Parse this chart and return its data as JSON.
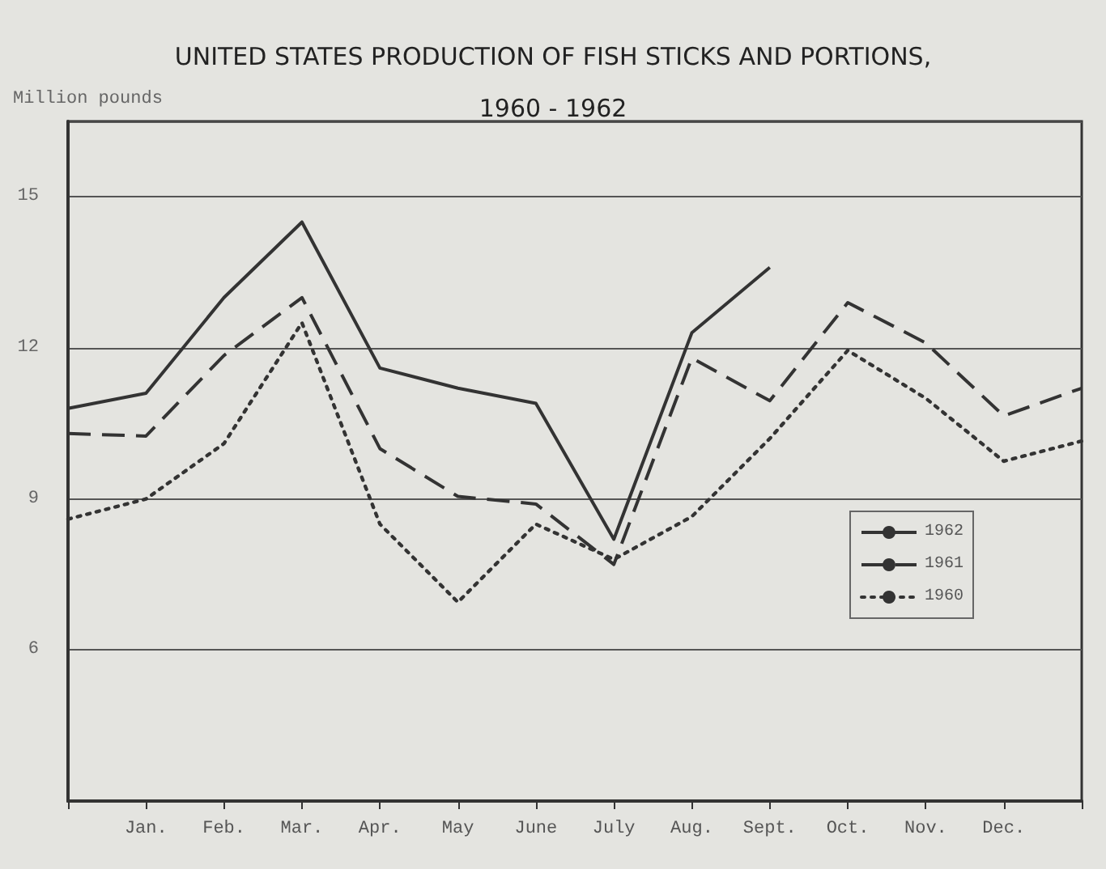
{
  "chart_data": {
    "type": "line",
    "title": "UNITED STATES PRODUCTION OF FISH STICKS AND PORTIONS,\n1960 - 1962",
    "ylabel": "Million pounds",
    "categories": [
      null,
      "Jan.",
      "Feb.",
      "Mar.",
      "Apr.",
      "May",
      "June",
      "July",
      "Aug.",
      "Sept.",
      "Oct.",
      "Nov.",
      "Dec.",
      null
    ],
    "ylim": [
      3,
      16.5
    ],
    "yticks": [
      6,
      9,
      12,
      15
    ],
    "series": [
      {
        "name": "1962",
        "color": "#333333",
        "line_style": "solid",
        "values": [
          10.8,
          11.1,
          13.0,
          14.5,
          11.6,
          11.2,
          10.9,
          8.2,
          12.3,
          13.6,
          null,
          null,
          null,
          null
        ]
      },
      {
        "name": "1961",
        "color": "#333333",
        "line_style": "dashed",
        "values": [
          10.3,
          10.25,
          11.85,
          13.0,
          10.0,
          9.05,
          8.9,
          7.7,
          11.8,
          10.95,
          12.9,
          12.1,
          10.65,
          11.2
        ]
      },
      {
        "name": "1960",
        "color": "#333333",
        "line_style": "dotted",
        "values": [
          8.6,
          9.0,
          10.1,
          12.5,
          8.5,
          6.95,
          8.5,
          7.8,
          8.65,
          10.2,
          11.95,
          11.0,
          9.75,
          10.15
        ]
      }
    ],
    "grid": "y",
    "legend": "right",
    "marker": "none"
  }
}
